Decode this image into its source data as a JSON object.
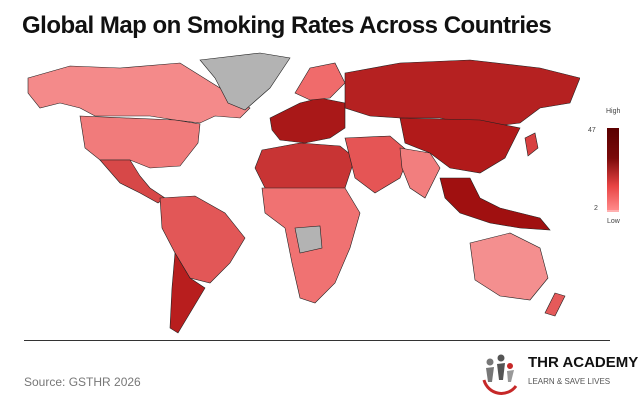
{
  "title": "Global Map on Smoking Rates Across Countries",
  "legend": {
    "high_label": "High",
    "low_label": "Low",
    "max": 47,
    "min": 2,
    "colors": [
      "#ff9a9a",
      "#e84444",
      "#5c0000"
    ]
  },
  "map": {
    "no_data_color": "#b3b3b3",
    "border_color": "#222222"
  },
  "source": "Source: GSTHR 2026",
  "logo": {
    "name": "THR ACADEMY",
    "tagline": "LEARN & SAVE LIVES",
    "accent": "#c62828"
  }
}
